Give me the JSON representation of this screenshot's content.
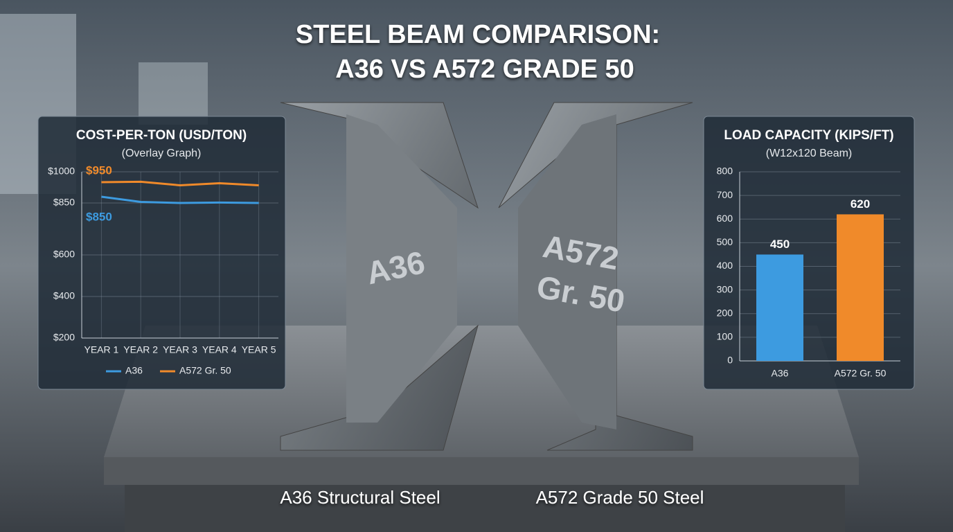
{
  "header": {
    "title_lines": [
      "STEEL BEAM COMPARISON:",
      "A36 VS A572 GRADE 50"
    ]
  },
  "beams": [
    {
      "marking": [
        "A36"
      ],
      "caption": "A36 Structural Steel"
    },
    {
      "marking": [
        "A572",
        "Gr. 50"
      ],
      "caption": "A572 Grade 50 Steel"
    }
  ],
  "chart_data": [
    {
      "type": "line",
      "title": "COST-PER-TON (USD/TON)",
      "subtitle": "(Overlay Graph)",
      "categories": [
        "YEAR 1",
        "YEAR 2",
        "YEAR 3",
        "YEAR 4",
        "YEAR 5"
      ],
      "series": [
        {
          "name": "A36",
          "color": "#3d9be0",
          "values": [
            880,
            855,
            850,
            852,
            850
          ],
          "label": "$850"
        },
        {
          "name": "A572 Gr. 50",
          "color": "#f08a2a",
          "values": [
            950,
            952,
            935,
            945,
            935
          ],
          "label": "$950"
        }
      ],
      "ylim": [
        200,
        1000
      ],
      "yticks": [
        {
          "value": 200,
          "label": "$200"
        },
        {
          "value": 400,
          "label": "$400"
        },
        {
          "value": 600,
          "label": "$600"
        },
        {
          "value": 850,
          "label": "$850"
        },
        {
          "value": 1000,
          "label": "$1000"
        }
      ],
      "grid": true,
      "legend": "bottom"
    },
    {
      "type": "bar",
      "title": "LOAD CAPACITY (KIPS/FT)",
      "subtitle": "(W12x120 Beam)",
      "categories": [
        "A36",
        "A572 Gr. 50"
      ],
      "values": [
        450,
        620
      ],
      "colors": [
        "#3d9be0",
        "#f08a2a"
      ],
      "ylim": [
        0,
        800
      ],
      "yticks": [
        0,
        100,
        200,
        300,
        400,
        500,
        600,
        700,
        800
      ],
      "grid": true
    }
  ]
}
